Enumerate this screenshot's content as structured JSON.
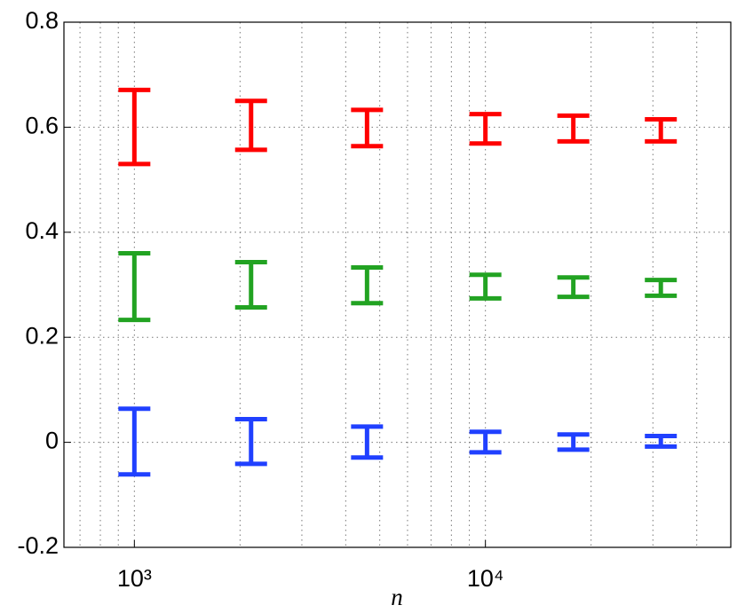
{
  "chart_data": {
    "type": "interval",
    "x_label": "n",
    "x_scale": "log",
    "x": [
      1000,
      2150,
      4600,
      10000,
      17800,
      31600
    ],
    "series": [
      {
        "color": "#ff0000",
        "low": [
          0.53,
          0.557,
          0.564,
          0.569,
          0.573,
          0.573
        ],
        "high": [
          0.671,
          0.65,
          0.633,
          0.625,
          0.622,
          0.615
        ]
      },
      {
        "color": "#22a322",
        "low": [
          0.233,
          0.257,
          0.265,
          0.274,
          0.277,
          0.279
        ],
        "high": [
          0.36,
          0.343,
          0.333,
          0.319,
          0.314,
          0.309
        ]
      },
      {
        "color": "#2040ff",
        "low": [
          -0.061,
          -0.041,
          -0.029,
          -0.019,
          -0.014,
          -0.008
        ],
        "high": [
          0.064,
          0.044,
          0.03,
          0.02,
          0.015,
          0.012
        ]
      }
    ],
    "xlim": [
      630,
      50000
    ],
    "ylim": [
      -0.2,
      0.8
    ],
    "xticks": [
      {
        "value": 1000,
        "label": "10³"
      },
      {
        "value": 10000,
        "label": "10⁴"
      }
    ],
    "xminor_ticks": [
      700,
      800,
      900,
      2000,
      3000,
      4000,
      5000,
      6000,
      7000,
      8000,
      9000,
      20000,
      30000,
      40000
    ],
    "yticks": [
      -0.2,
      0,
      0.2,
      0.4,
      0.6,
      0.8
    ],
    "grid": true
  }
}
